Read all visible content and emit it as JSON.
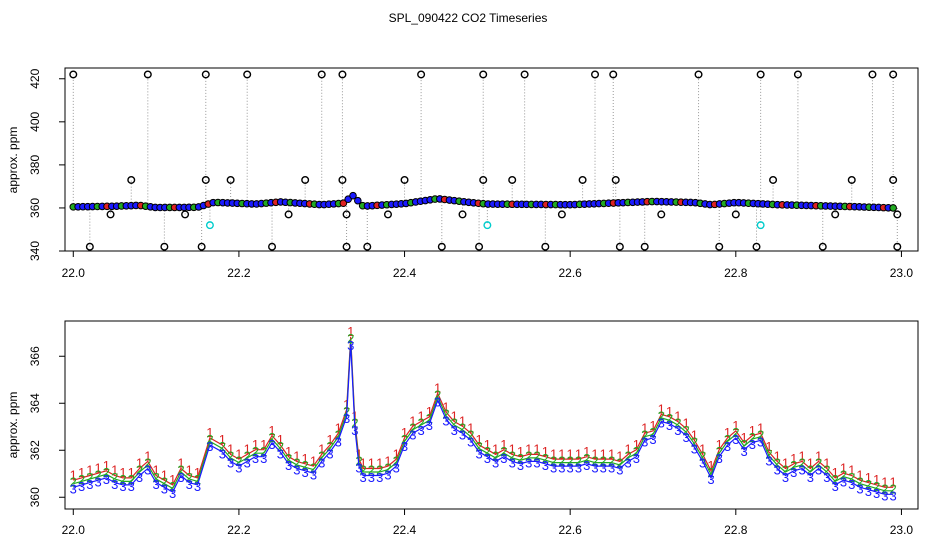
{
  "chart_data": [
    {
      "type": "scatter",
      "title": "SPL_090422  CO2 Timeseries",
      "ylabel": "approx. ppm",
      "xlim": [
        21.99,
        23.02
      ],
      "ylim": [
        340,
        425
      ],
      "x_ticks": [
        "22.0",
        "22.2",
        "22.4",
        "22.6",
        "22.8",
        "23.0"
      ],
      "y_ticks": [
        "340",
        "360",
        "380",
        "400",
        "420"
      ],
      "colors": {
        "outline": "#000000",
        "marker_fill": "#1a1aff",
        "marker_green": "#22aa22",
        "marker_red": "#dd2222",
        "flagged": "#00cccc",
        "spike_line": "#999999"
      },
      "baseline": {
        "x": [
          22.0,
          22.05,
          22.08,
          22.1,
          22.15,
          22.17,
          22.22,
          22.25,
          22.3,
          22.33,
          22.335,
          22.35,
          22.4,
          22.44,
          22.48,
          22.5,
          22.6,
          22.7,
          22.75,
          22.77,
          22.8,
          22.85,
          22.9,
          22.95,
          22.99
        ],
        "y": [
          360.5,
          360.8,
          361.2,
          360.2,
          360.3,
          362.6,
          361.8,
          362.8,
          361.5,
          362.3,
          366.8,
          360.8,
          362,
          364.3,
          362.5,
          361.8,
          361.5,
          363,
          362.5,
          361.5,
          362.5,
          361.5,
          361,
          360.5,
          360
        ]
      },
      "spikes": {
        "x": [
          22.0,
          22.09,
          22.16,
          22.21,
          22.3,
          22.325,
          22.42,
          22.495,
          22.545,
          22.63,
          22.652,
          22.755,
          22.83,
          22.875,
          22.965,
          22.99
        ],
        "y": [
          422,
          422,
          422,
          422,
          422,
          422,
          422,
          422,
          422,
          422,
          422,
          422,
          422,
          422,
          422,
          422
        ]
      },
      "low_points": {
        "x": [
          22.02,
          22.11,
          22.155,
          22.24,
          22.33,
          22.355,
          22.445,
          22.49,
          22.57,
          22.66,
          22.69,
          22.78,
          22.825,
          22.905,
          22.995
        ],
        "y": [
          342,
          342,
          342,
          342,
          342,
          342,
          342,
          342,
          342,
          342,
          342,
          342,
          342,
          342,
          342
        ]
      },
      "mid_points": {
        "x": [
          22.07,
          22.16,
          22.19,
          22.28,
          22.325,
          22.4,
          22.495,
          22.53,
          22.615,
          22.655,
          22.845,
          22.94,
          22.99
        ],
        "y": [
          373,
          373,
          373,
          373,
          373,
          373,
          373,
          373,
          373,
          373,
          373,
          373,
          373
        ]
      },
      "low_mid_points": {
        "x": [
          22.045,
          22.135,
          22.26,
          22.33,
          22.38,
          22.47,
          22.59,
          22.71,
          22.8,
          22.92,
          22.995
        ],
        "y": [
          357,
          357,
          357,
          357,
          357,
          357,
          357,
          357,
          357,
          357,
          357
        ]
      },
      "flagged": {
        "x": [
          22.165,
          22.5,
          22.83
        ],
        "y": [
          352,
          352,
          352
        ]
      }
    },
    {
      "type": "line",
      "ylabel": "approx. ppm",
      "xlim": [
        21.99,
        23.02
      ],
      "ylim": [
        359.5,
        367.5
      ],
      "x_ticks": [
        "22.0",
        "22.2",
        "22.4",
        "22.6",
        "22.8",
        "23.0"
      ],
      "y_ticks": [
        "360",
        "362",
        "364",
        "366"
      ],
      "series": [
        {
          "name": "1",
          "color": "#dd2222",
          "offset": 0.45
        },
        {
          "name": "2",
          "color": "#22aa22",
          "offset": 0.15
        },
        {
          "name": "3",
          "color": "#1a1aff",
          "offset": -0.15
        }
      ],
      "x": [
        22.0,
        22.01,
        22.02,
        22.03,
        22.04,
        22.05,
        22.06,
        22.07,
        22.08,
        22.09,
        22.1,
        22.11,
        22.12,
        22.13,
        22.14,
        22.15,
        22.165,
        22.18,
        22.19,
        22.2,
        22.21,
        22.22,
        22.23,
        22.24,
        22.25,
        22.26,
        22.27,
        22.28,
        22.29,
        22.3,
        22.31,
        22.32,
        22.33,
        22.335,
        22.34,
        22.345,
        22.35,
        22.36,
        22.37,
        22.38,
        22.39,
        22.4,
        22.41,
        22.42,
        22.43,
        22.44,
        22.45,
        22.46,
        22.47,
        22.48,
        22.49,
        22.5,
        22.51,
        22.52,
        22.53,
        22.54,
        22.55,
        22.56,
        22.57,
        22.58,
        22.59,
        22.6,
        22.61,
        22.62,
        22.63,
        22.64,
        22.65,
        22.66,
        22.67,
        22.68,
        22.69,
        22.7,
        22.71,
        22.72,
        22.73,
        22.74,
        22.75,
        22.76,
        22.77,
        22.78,
        22.79,
        22.8,
        22.81,
        22.82,
        22.83,
        22.84,
        22.85,
        22.86,
        22.87,
        22.88,
        22.89,
        22.9,
        22.91,
        22.92,
        22.93,
        22.94,
        22.95,
        22.96,
        22.97,
        22.98,
        22.99
      ],
      "y": [
        360.5,
        360.6,
        360.7,
        360.8,
        360.9,
        360.7,
        360.6,
        360.6,
        361,
        361.3,
        360.7,
        360.5,
        360.3,
        361,
        360.7,
        360.6,
        362.3,
        362,
        361.6,
        361.4,
        361.6,
        361.8,
        361.8,
        362.4,
        362,
        361.5,
        361.3,
        361.2,
        361.1,
        361.6,
        362,
        362.5,
        363.5,
        366.6,
        363,
        361.4,
        361,
        361,
        361,
        361.1,
        361.4,
        362.3,
        362.8,
        363,
        363.2,
        364.2,
        363.4,
        363,
        362.8,
        362.5,
        362,
        361.8,
        361.6,
        361.8,
        361.6,
        361.5,
        361.6,
        361.6,
        361.5,
        361.4,
        361.4,
        361.4,
        361.4,
        361.5,
        361.4,
        361.4,
        361.4,
        361.3,
        361.6,
        361.8,
        362.5,
        362.6,
        363.3,
        363.2,
        363,
        362.7,
        362.2,
        361.6,
        360.9,
        361.8,
        362.3,
        362.6,
        362.1,
        362.4,
        362.5,
        361.7,
        361.3,
        361,
        361.2,
        361.3,
        361,
        361.3,
        361,
        360.6,
        360.8,
        360.7,
        360.5,
        360.4,
        360.3,
        360.2,
        360.2
      ]
    }
  ]
}
